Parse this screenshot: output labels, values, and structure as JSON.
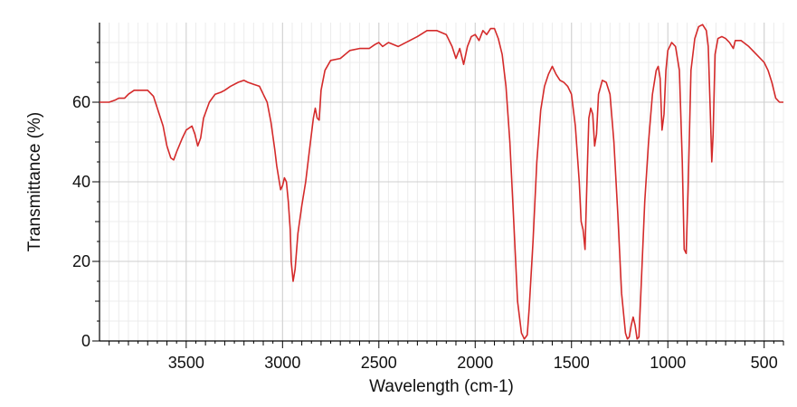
{
  "chart_data": {
    "type": "line",
    "title": "",
    "xlabel": "Wavelength (cm-1)",
    "ylabel": "Transmittance (%)",
    "xlim": [
      3950,
      400
    ],
    "ylim": [
      0,
      80
    ],
    "x_reversed": true,
    "x_ticks": [
      3500,
      3000,
      2500,
      2000,
      1500,
      1000,
      500
    ],
    "y_ticks": [
      0,
      20,
      40,
      60
    ],
    "grid": true,
    "legend": "none",
    "series_color": "#d42a2a",
    "series": [
      {
        "points": [
          [
            3950,
            60
          ],
          [
            3900,
            60
          ],
          [
            3870,
            60.5
          ],
          [
            3850,
            61
          ],
          [
            3820,
            61
          ],
          [
            3800,
            62
          ],
          [
            3770,
            63
          ],
          [
            3730,
            63
          ],
          [
            3700,
            63
          ],
          [
            3670,
            61.5
          ],
          [
            3650,
            58.5
          ],
          [
            3620,
            54
          ],
          [
            3600,
            49
          ],
          [
            3580,
            46
          ],
          [
            3565,
            45.5
          ],
          [
            3550,
            47.5
          ],
          [
            3520,
            51
          ],
          [
            3500,
            53
          ],
          [
            3470,
            54
          ],
          [
            3455,
            52
          ],
          [
            3440,
            49
          ],
          [
            3425,
            51
          ],
          [
            3410,
            56
          ],
          [
            3380,
            60
          ],
          [
            3350,
            62
          ],
          [
            3320,
            62.5
          ],
          [
            3300,
            63
          ],
          [
            3270,
            64
          ],
          [
            3230,
            65
          ],
          [
            3200,
            65.5
          ],
          [
            3180,
            65
          ],
          [
            3150,
            64.5
          ],
          [
            3120,
            64
          ],
          [
            3100,
            62
          ],
          [
            3080,
            60
          ],
          [
            3060,
            55
          ],
          [
            3040,
            48
          ],
          [
            3030,
            44
          ],
          [
            3010,
            38
          ],
          [
            3000,
            39
          ],
          [
            2990,
            41
          ],
          [
            2980,
            40
          ],
          [
            2970,
            35
          ],
          [
            2960,
            28
          ],
          [
            2955,
            20
          ],
          [
            2945,
            15
          ],
          [
            2935,
            18
          ],
          [
            2920,
            27
          ],
          [
            2900,
            34
          ],
          [
            2880,
            40
          ],
          [
            2860,
            48
          ],
          [
            2840,
            56
          ],
          [
            2830,
            58.5
          ],
          [
            2820,
            56
          ],
          [
            2810,
            55.5
          ],
          [
            2800,
            63
          ],
          [
            2780,
            68
          ],
          [
            2750,
            70.5
          ],
          [
            2700,
            71
          ],
          [
            2650,
            73
          ],
          [
            2600,
            73.5
          ],
          [
            2550,
            73.5
          ],
          [
            2520,
            74.5
          ],
          [
            2500,
            75
          ],
          [
            2480,
            74
          ],
          [
            2450,
            75
          ],
          [
            2400,
            74
          ],
          [
            2300,
            76.5
          ],
          [
            2250,
            78
          ],
          [
            2200,
            78
          ],
          [
            2150,
            77
          ],
          [
            2120,
            74
          ],
          [
            2100,
            71
          ],
          [
            2080,
            73.5
          ],
          [
            2060,
            69.5
          ],
          [
            2040,
            74
          ],
          [
            2020,
            76.5
          ],
          [
            2000,
            77
          ],
          [
            1980,
            75.5
          ],
          [
            1960,
            78
          ],
          [
            1940,
            77
          ],
          [
            1920,
            78.5
          ],
          [
            1900,
            78.5
          ],
          [
            1880,
            76
          ],
          [
            1860,
            72
          ],
          [
            1840,
            64
          ],
          [
            1820,
            50
          ],
          [
            1800,
            30
          ],
          [
            1780,
            10
          ],
          [
            1760,
            2
          ],
          [
            1745,
            0.5
          ],
          [
            1730,
            1.5
          ],
          [
            1720,
            8
          ],
          [
            1700,
            25
          ],
          [
            1680,
            45
          ],
          [
            1660,
            58
          ],
          [
            1640,
            64
          ],
          [
            1620,
            67
          ],
          [
            1600,
            69
          ],
          [
            1580,
            67
          ],
          [
            1560,
            65.5
          ],
          [
            1540,
            65
          ],
          [
            1520,
            64
          ],
          [
            1500,
            62
          ],
          [
            1480,
            54
          ],
          [
            1460,
            40
          ],
          [
            1450,
            30
          ],
          [
            1440,
            28
          ],
          [
            1430,
            23
          ],
          [
            1420,
            40
          ],
          [
            1410,
            56
          ],
          [
            1400,
            58.5
          ],
          [
            1390,
            57
          ],
          [
            1380,
            49
          ],
          [
            1370,
            52
          ],
          [
            1360,
            62
          ],
          [
            1340,
            65.5
          ],
          [
            1320,
            65
          ],
          [
            1300,
            62
          ],
          [
            1280,
            50
          ],
          [
            1260,
            32
          ],
          [
            1240,
            12
          ],
          [
            1220,
            2
          ],
          [
            1210,
            0.5
          ],
          [
            1200,
            1
          ],
          [
            1190,
            4
          ],
          [
            1180,
            6
          ],
          [
            1170,
            4
          ],
          [
            1160,
            0.5
          ],
          [
            1150,
            1
          ],
          [
            1140,
            12
          ],
          [
            1120,
            35
          ],
          [
            1100,
            50
          ],
          [
            1080,
            62
          ],
          [
            1060,
            68
          ],
          [
            1050,
            69
          ],
          [
            1040,
            66
          ],
          [
            1030,
            53
          ],
          [
            1020,
            57
          ],
          [
            1010,
            68
          ],
          [
            1000,
            73
          ],
          [
            980,
            75
          ],
          [
            960,
            74
          ],
          [
            940,
            68
          ],
          [
            925,
            45
          ],
          [
            915,
            23
          ],
          [
            905,
            22
          ],
          [
            895,
            38
          ],
          [
            880,
            68
          ],
          [
            860,
            76
          ],
          [
            840,
            79
          ],
          [
            820,
            79.5
          ],
          [
            800,
            78
          ],
          [
            790,
            74
          ],
          [
            780,
            58
          ],
          [
            772,
            45
          ],
          [
            765,
            52
          ],
          [
            755,
            72
          ],
          [
            740,
            76
          ],
          [
            720,
            76.5
          ],
          [
            700,
            76
          ],
          [
            680,
            75
          ],
          [
            660,
            73.5
          ],
          [
            650,
            75.5
          ],
          [
            620,
            75.5
          ],
          [
            580,
            74
          ],
          [
            540,
            72
          ],
          [
            500,
            70
          ],
          [
            480,
            68
          ],
          [
            460,
            65
          ],
          [
            440,
            61
          ],
          [
            420,
            60
          ],
          [
            400,
            60
          ]
        ]
      }
    ]
  }
}
